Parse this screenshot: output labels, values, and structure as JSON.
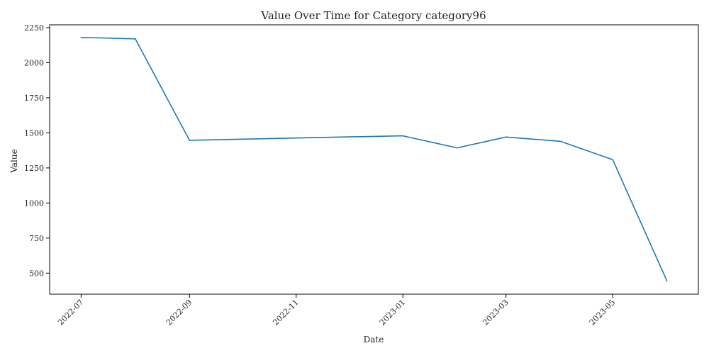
{
  "chart_data": {
    "type": "line",
    "title": "Value Over Time for Category category96",
    "xlabel": "Date",
    "ylabel": "Value",
    "x_ticks": [
      "2022-07",
      "2022-09",
      "2022-11",
      "2023-01",
      "2023-03",
      "2023-05"
    ],
    "y_ticks": [
      500,
      750,
      1000,
      1250,
      1500,
      1750,
      2000,
      2250
    ],
    "ylim": [
      350,
      2270
    ],
    "xlim": [
      "2022-06-13",
      "2023-06-19"
    ],
    "grid": false,
    "series": [
      {
        "color": "#1f77b4",
        "x": [
          "2022-07-01",
          "2022-08-01",
          "2022-09-01",
          "2022-10-01",
          "2022-11-01",
          "2022-12-01",
          "2023-01-01",
          "2023-02-01",
          "2023-03-01",
          "2023-04-01",
          "2023-05-01",
          "2023-06-01"
        ],
        "y": [
          2180,
          2170,
          1447,
          1455,
          1463,
          1471,
          1479,
          1393,
          1470,
          1440,
          1309,
          445
        ]
      }
    ]
  }
}
